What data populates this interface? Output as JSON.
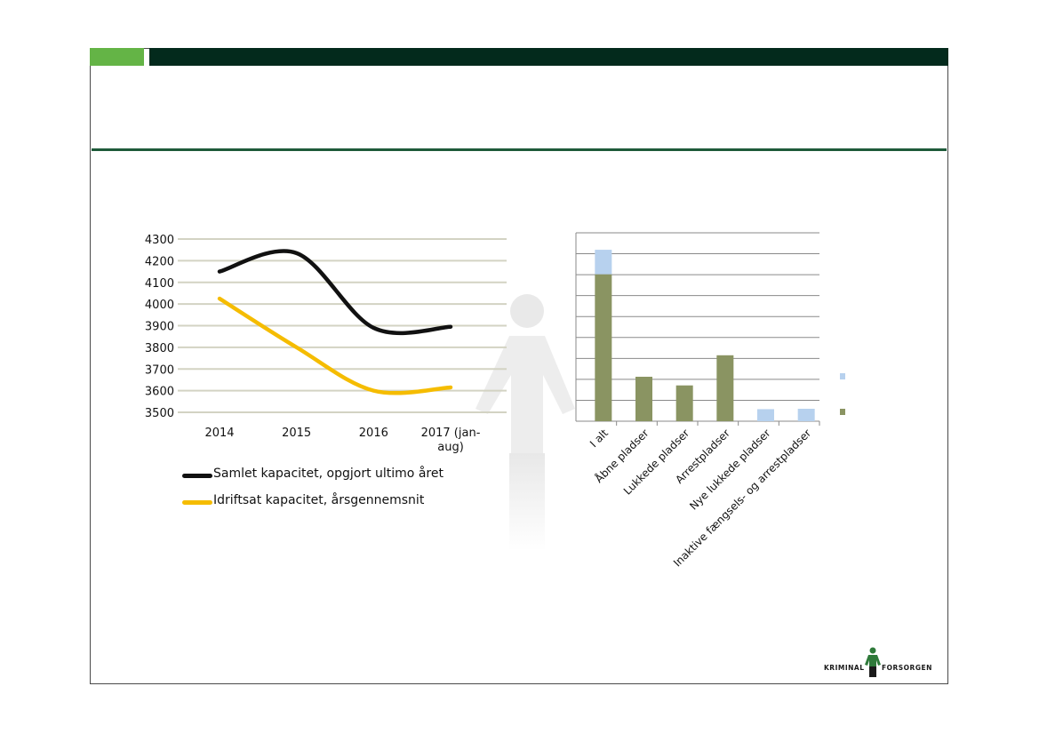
{
  "colors": {
    "accent_green": "#64b446",
    "dark_green": "#032a1c",
    "rule_green": "#1e5a3a",
    "series_black": "#111111",
    "series_yellow": "#f5bc00",
    "bar_olive": "#8a9462",
    "bar_lightblue": "#b7d1ee",
    "grid_line": "#d3d3c3",
    "watermark": "#ececec"
  },
  "chart_data": [
    {
      "type": "line",
      "x": [
        "2014",
        "2015",
        "2016",
        "2017 (jan-aug)"
      ],
      "x_tick_lines": [
        [
          "2014"
        ],
        [
          "2015"
        ],
        [
          "2016"
        ],
        [
          "2017 (jan-",
          "aug)"
        ]
      ],
      "series": [
        {
          "name": "Samlet kapacitet, opgjort ultimo året",
          "values": [
            4150,
            4235,
            3890,
            3895
          ],
          "color": "#111111"
        },
        {
          "name": "Idriftsat kapacitet, årsgennemsnit",
          "values": [
            4025,
            3800,
            3600,
            3615
          ],
          "color": "#f5bc00"
        }
      ],
      "yticks": [
        4300,
        4200,
        4100,
        4000,
        3900,
        3800,
        3700,
        3600,
        3500
      ],
      "ylim": [
        3500,
        4300
      ],
      "grid": true,
      "legend_position": "bottom"
    },
    {
      "type": "bar",
      "stacked": true,
      "categories": [
        "I alt",
        "Åbne pladser",
        "Lukkede pladser",
        "Arrestpladser",
        "Nye lukkede pladser",
        "Inaktive fængsels- og arrestpladser"
      ],
      "series": [
        {
          "values": [
            3900,
            1180,
            950,
            1750,
            0,
            0
          ],
          "color": "#8a9462"
        },
        {
          "values": [
            650,
            0,
            0,
            0,
            320,
            330
          ],
          "color": "#b7d1ee"
        }
      ],
      "ylim": [
        0,
        5000
      ],
      "grid": true,
      "legend_position": "right"
    }
  ]
}
